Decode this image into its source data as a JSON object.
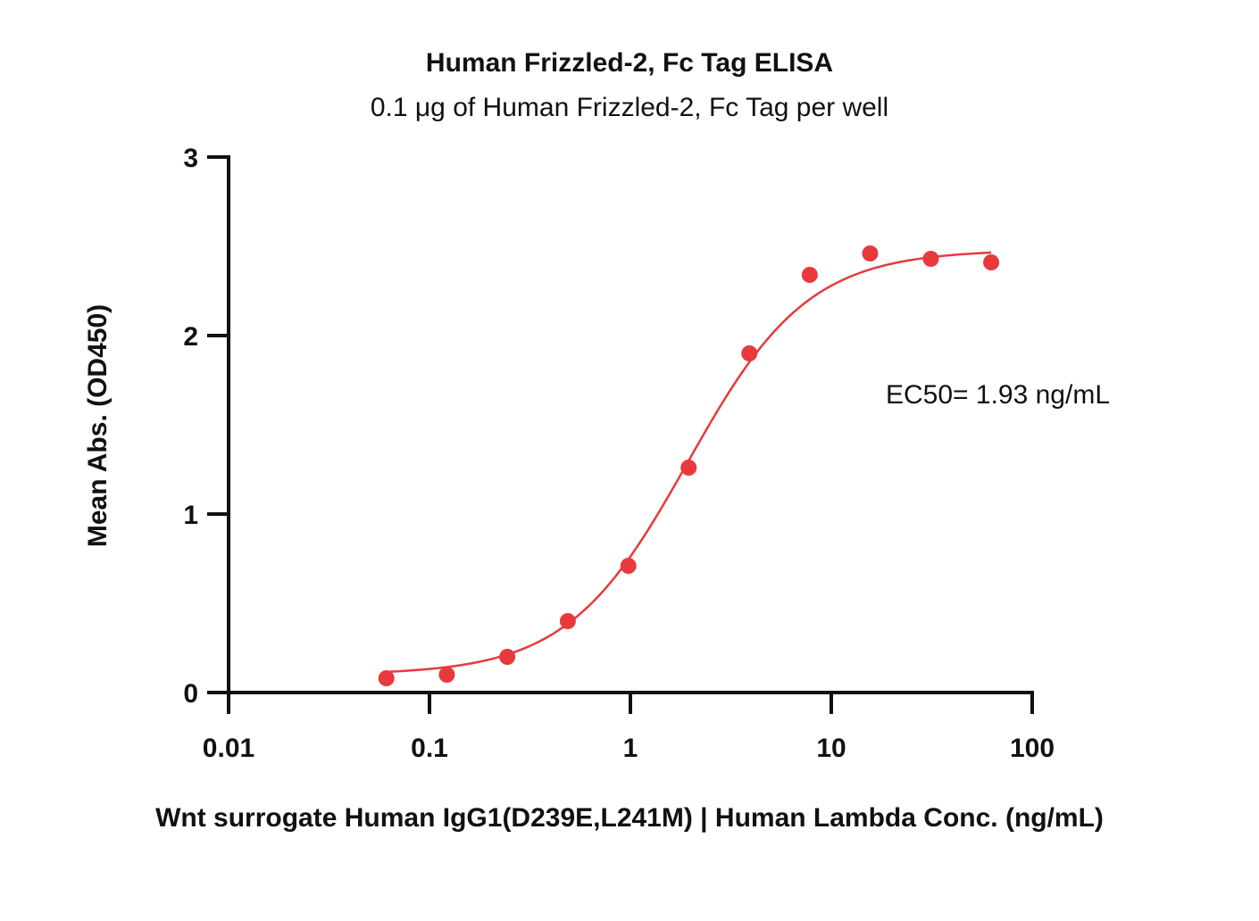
{
  "chart_data": {
    "type": "scatter",
    "title": "Human Frizzled-2, Fc Tag ELISA",
    "subtitle": "0.1 μg of Human Frizzled-2, Fc Tag per well",
    "xlabel": "Wnt surrogate Human IgG1(D239E,L241M) | Human Lambda Conc. (ng/mL)",
    "ylabel": "Mean Abs. (OD450)",
    "xscale": "log",
    "xlim": [
      0.01,
      100
    ],
    "ylim": [
      0,
      3
    ],
    "x_ticks": [
      "0.01",
      "0.1",
      "1",
      "10",
      "100"
    ],
    "y_ticks": [
      "0",
      "1",
      "2",
      "3"
    ],
    "grid": false,
    "legend": "none",
    "series": [
      {
        "color": "#e8393d",
        "x": [
          0.061,
          0.122,
          0.244,
          0.488,
          0.977,
          1.95,
          3.91,
          7.81,
          15.6,
          31.3,
          62.5
        ],
        "y": [
          0.08,
          0.1,
          0.2,
          0.4,
          0.71,
          1.26,
          1.9,
          2.34,
          2.46,
          2.43,
          2.41
        ]
      }
    ],
    "fit": {
      "model": "4PL",
      "bottom": 0.1,
      "top": 2.48,
      "ec50": 1.93,
      "hill": 1.45,
      "x_range": [
        0.061,
        62.5
      ],
      "color": "#e8393d"
    },
    "annotations": [
      {
        "text": "EC50= 1.93 ng/mL"
      }
    ]
  }
}
